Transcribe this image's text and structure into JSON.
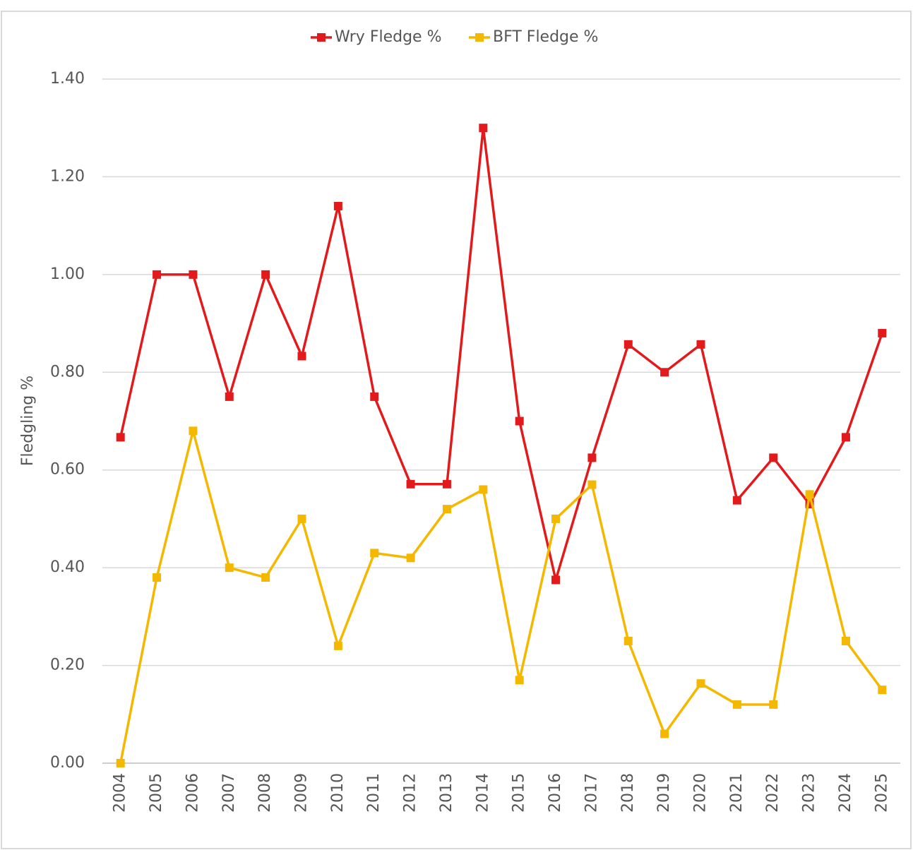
{
  "chart_data": {
    "type": "line",
    "y_label": "Fledgling %",
    "categories": [
      "2004",
      "2005",
      "2006",
      "2007",
      "2008",
      "2009",
      "2010",
      "2011",
      "2012",
      "2013",
      "2014",
      "2015",
      "2016",
      "2017",
      "2018",
      "2019",
      "2020",
      "2021",
      "2022",
      "2023",
      "2024",
      "2025"
    ],
    "series": [
      {
        "name": "Wry Fledge %",
        "color": "#e31a1c",
        "values": [
          0.667,
          1.0,
          1.0,
          0.75,
          1.0,
          0.833,
          1.14,
          0.75,
          0.571,
          0.571,
          1.3,
          0.7,
          0.375,
          0.625,
          0.857,
          0.8,
          0.857,
          0.538,
          0.625,
          0.53,
          0.667,
          0.88
        ]
      },
      {
        "name": "BFT Fledge %",
        "color": "#f5b800",
        "values": [
          0.0,
          0.38,
          0.68,
          0.4,
          0.38,
          0.5,
          0.24,
          0.43,
          0.42,
          0.52,
          0.56,
          0.17,
          0.5,
          0.57,
          0.25,
          0.06,
          0.163,
          0.12,
          0.12,
          0.55,
          0.25,
          0.15
        ]
      }
    ],
    "ylim": [
      0,
      1.4
    ],
    "yticks": [
      {
        "value": 0,
        "label": "0.00"
      },
      {
        "value": 0.2,
        "label": "0.20"
      },
      {
        "value": 0.4,
        "label": "0.40"
      },
      {
        "value": 0.6,
        "label": "0.60"
      },
      {
        "value": 0.8,
        "label": "0.80"
      },
      {
        "value": 1.0,
        "label": "1.00"
      },
      {
        "value": 1.2,
        "label": "1.20"
      },
      {
        "value": 1.4,
        "label": "1.40"
      }
    ],
    "grid": true,
    "legend": "top"
  }
}
